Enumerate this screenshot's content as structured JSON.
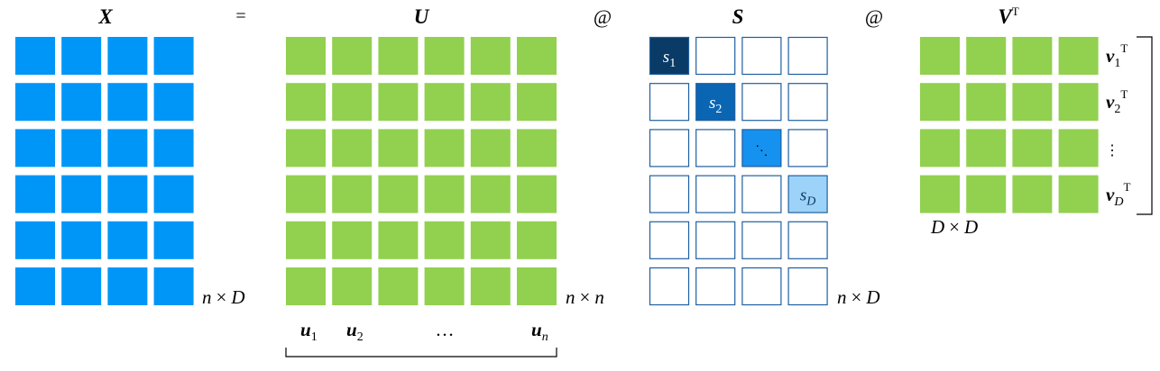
{
  "colors": {
    "x_cell": "#0096f7",
    "u_cell": "#92d050",
    "v_cell": "#92d050",
    "s_border": "#1f5fa0",
    "s1_fill": "#0a3a66",
    "s2_fill": "#0a66b3",
    "s3_fill": "#1591ef",
    "sD_fill": "#9dd3f8",
    "text": "#000000",
    "text_light": "#ffffff",
    "bracket": "#000000"
  },
  "header": {
    "x_title": "X",
    "eq": "=",
    "u_title": "U",
    "at1": "@",
    "s_title": "S",
    "at2": "@",
    "vt_title": "V",
    "vt_sup": "T"
  },
  "matrix_x": {
    "rows": 6,
    "cols": 4,
    "dim_n": "n",
    "dim_times": "×",
    "dim_d": "D"
  },
  "matrix_u": {
    "rows": 6,
    "cols": 6,
    "dim_n1": "n",
    "dim_times": "×",
    "dim_n2": "n",
    "col_labels": [
      {
        "base": "u",
        "sub": "1"
      },
      {
        "base": "u",
        "sub": "2"
      },
      {
        "base": "…",
        "sub": ""
      },
      {
        "base": "u",
        "sub": "n"
      }
    ]
  },
  "matrix_s": {
    "rows": 6,
    "cols": 4,
    "dim_n": "n",
    "dim_times": "×",
    "dim_d": "D",
    "diag": [
      {
        "base": "s",
        "sub": "1"
      },
      {
        "base": "s",
        "sub": "2"
      },
      {
        "base": "⋱",
        "sub": ""
      },
      {
        "base": "s",
        "sub": "D"
      }
    ]
  },
  "matrix_vt": {
    "rows": 4,
    "cols": 4,
    "dim_d1": "D",
    "dim_times": "×",
    "dim_d2": "D",
    "row_labels": [
      {
        "base": "v",
        "sub": "1",
        "sup": "T"
      },
      {
        "base": "v",
        "sub": "2",
        "sup": "T"
      },
      {
        "base": "⋮",
        "sub": "",
        "sup": ""
      },
      {
        "base": "v",
        "sub": "D",
        "sup": "T"
      }
    ]
  }
}
